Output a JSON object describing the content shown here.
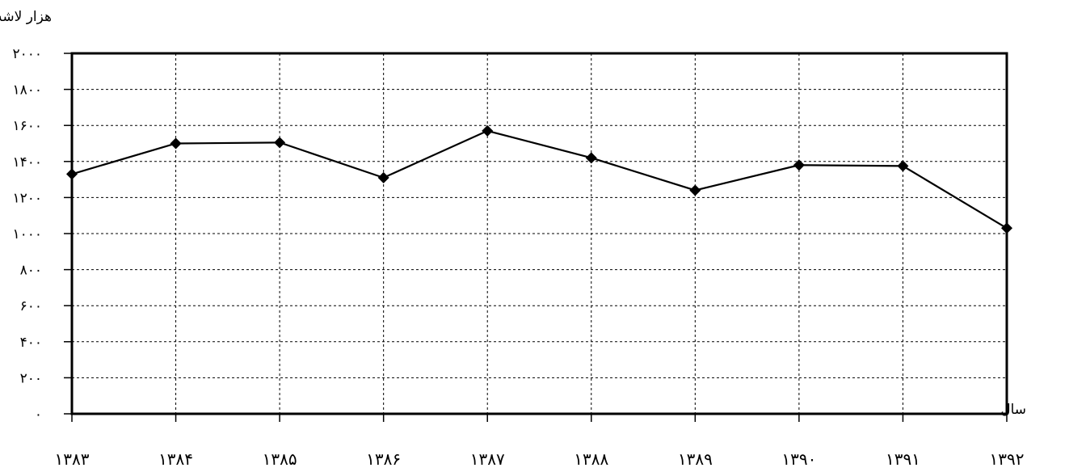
{
  "chart_data": {
    "type": "line",
    "ylabel": "هزار لاشه",
    "xlabel": "سال",
    "categories": [
      "۱۳۸۳",
      "۱۳۸۴",
      "۱۳۸۵",
      "۱۳۸۶",
      "۱۳۸۷",
      "۱۳۸۸",
      "۱۳۸۹",
      "۱۳۹۰",
      "۱۳۹۱",
      "۱۳۹۲"
    ],
    "y_tick_labels": [
      "۰",
      "۲۰۰",
      "۴۰۰",
      "۶۰۰",
      "۸۰۰",
      "۱۰۰۰",
      "۱۲۰۰",
      "۱۴۰۰",
      "۱۶۰۰",
      "۱۸۰۰",
      "۲۰۰۰"
    ],
    "y_ticks": [
      0,
      200,
      400,
      600,
      800,
      1000,
      1200,
      1400,
      1600,
      1800,
      2000
    ],
    "ylim": [
      0,
      2000
    ],
    "grid": true,
    "series": [
      {
        "values": [
          1330,
          1500,
          1505,
          1310,
          1570,
          1420,
          1240,
          1380,
          1375,
          1030
        ],
        "color": "#000000",
        "marker": "diamond"
      }
    ]
  }
}
